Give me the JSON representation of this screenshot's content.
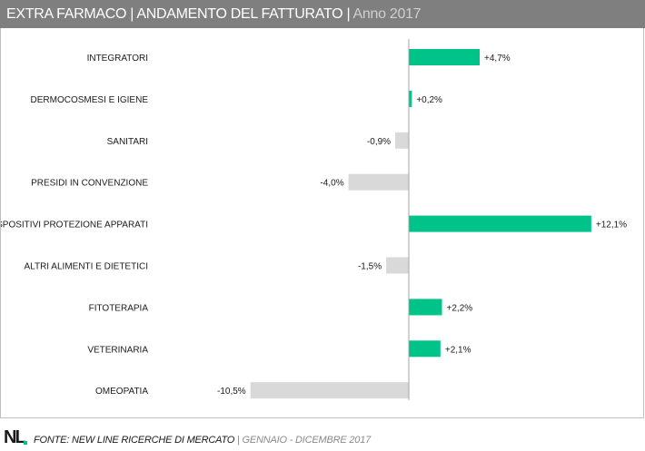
{
  "header": {
    "title": "EXTRA FARMACO | ANDAMENTO DEL FATTURATO |",
    "subtitle": " Anno 2017"
  },
  "footer": {
    "logo": "NL",
    "source": "FONTE:  NEW LINE RICERCHE DI MERCATO",
    "period": " | GENNAIO - DICEMBRE 2017"
  },
  "colors": {
    "positive": "#00c389",
    "negative": "#d9d9d9",
    "header_bg": "#7f7f7f",
    "axis": "#a6a6a6"
  },
  "chart_data": {
    "type": "bar",
    "orientation": "horizontal",
    "categories": [
      "INTEGRATORI",
      "DERMOCOSMESI E IGIENE",
      "SANITARI",
      "PRESIDI IN CONVENZIONE",
      "DISPOSITIVI PROTEZIONE APPARATI",
      "ALTRI ALIMENTI E DIETETICI",
      "FITOTERAPIA",
      "VETERINARIA",
      "OMEOPATIA"
    ],
    "values": [
      4.7,
      0.2,
      -0.9,
      -4.0,
      12.1,
      -1.5,
      2.2,
      2.1,
      -10.5
    ],
    "data_labels": [
      "+4,7%",
      "+0,2%",
      "-0,9%",
      "-4,0%",
      "+12,1%",
      "-1,5%",
      "+2,2%",
      "+2,1%",
      "-10,5%"
    ],
    "unit": "%",
    "xlim": [
      -10.5,
      12.1
    ],
    "grid": false,
    "legend": "none"
  }
}
